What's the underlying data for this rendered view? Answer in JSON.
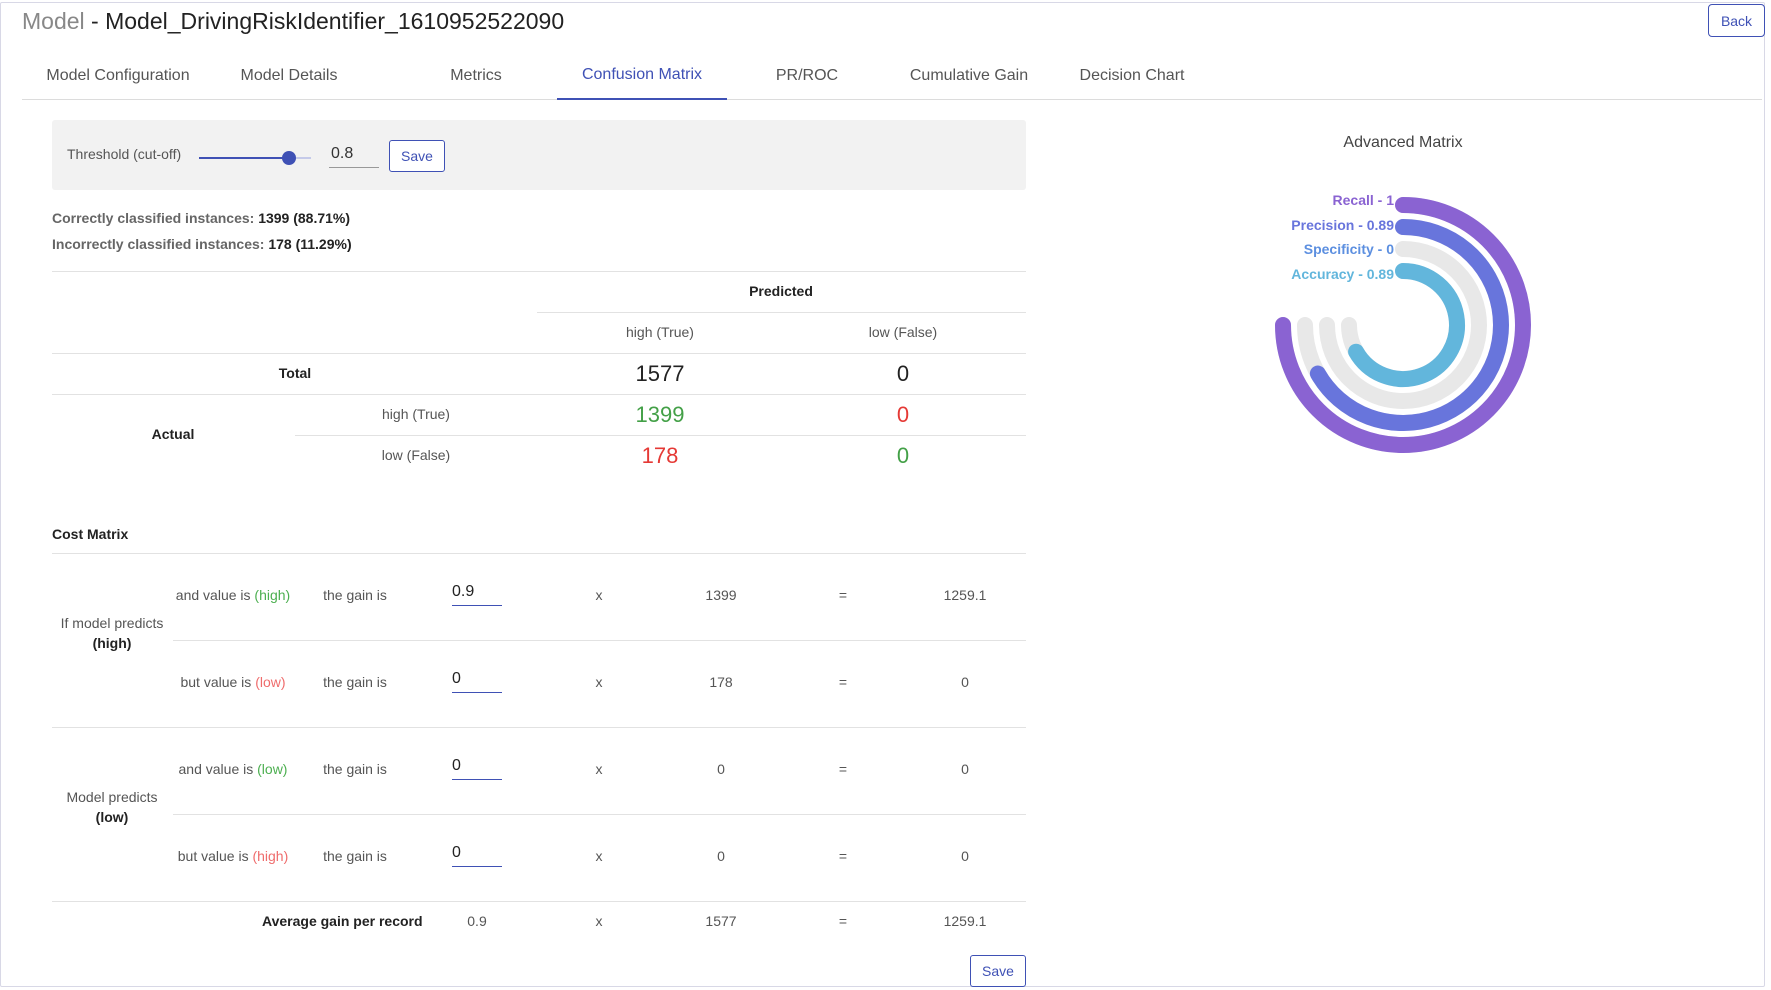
{
  "header": {
    "title_prefix": "Model",
    "title_sep": " - ",
    "title_name": "Model_DrivingRiskIdentifier_1610952522090",
    "back_label": "Back"
  },
  "tabs": [
    {
      "label": "Model Configuration"
    },
    {
      "label": "Model Details"
    },
    {
      "label": "Metrics"
    },
    {
      "label": "Confusion Matrix"
    },
    {
      "label": "PR/ROC"
    },
    {
      "label": "Cumulative Gain"
    },
    {
      "label": "Decision Chart"
    }
  ],
  "threshold": {
    "label": "Threshold (cut-off)",
    "value": "0.8",
    "level": 0.8,
    "save_label": "Save"
  },
  "summary": {
    "correct_label": "Correctly classified instances:",
    "correct_value": "1399 (88.71%)",
    "incorrect_label": "Incorrectly classified instances:",
    "incorrect_value": "178 (11.29%)"
  },
  "confusion": {
    "predicted_label": "Predicted",
    "col_true": "high (True)",
    "col_false": "low (False)",
    "total_label": "Total",
    "total_true": "1577",
    "total_false": "0",
    "actual_label": "Actual",
    "row_true": "high (True)",
    "row_false": "low (False)",
    "tp": "1399",
    "fn": "0",
    "fp": "178",
    "tn": "0"
  },
  "cost_matrix": {
    "title": "Cost Matrix",
    "group_high_label": "If model predicts",
    "group_high_value": "(high)",
    "group_low_label": "Model predicts",
    "group_low_value": "(low)",
    "gain_label": "the gain is",
    "times": "x",
    "equals": "=",
    "rows": [
      {
        "prefix": "and value is",
        "value_word": "(high)",
        "gain": "0.9",
        "count": "1399",
        "result": "1259.1"
      },
      {
        "prefix": "but value is",
        "value_word": "(low)",
        "gain": "0",
        "count": "178",
        "result": "0"
      },
      {
        "prefix": "and value is",
        "value_word": "(low)",
        "gain": "0",
        "count": "0",
        "result": "0"
      },
      {
        "prefix": "but value is",
        "value_word": "(high)",
        "gain": "0",
        "count": "0",
        "result": "0"
      }
    ],
    "average_label": "Average gain per record",
    "average_gain": "0.9",
    "average_count": "1577",
    "average_result": "1259.1",
    "save_label": "Save"
  },
  "chart_data": {
    "type": "radial-bar",
    "title": "Advanced Matrix",
    "series": [
      {
        "name": "Recall",
        "label": "Recall - 1",
        "value": 1,
        "color": "#8a63d2"
      },
      {
        "name": "Precision",
        "label": "Precision - 0.89",
        "value": 0.89,
        "color": "#6875dc"
      },
      {
        "name": "Specificity",
        "label": "Specificity - 0",
        "value": 0,
        "color": "#5c8fe0"
      },
      {
        "name": "Accuracy",
        "label": "Accuracy - 0.89",
        "value": 0.89,
        "color": "#62b6dc"
      }
    ],
    "track_color": "#e8e8e8",
    "max": 1
  }
}
